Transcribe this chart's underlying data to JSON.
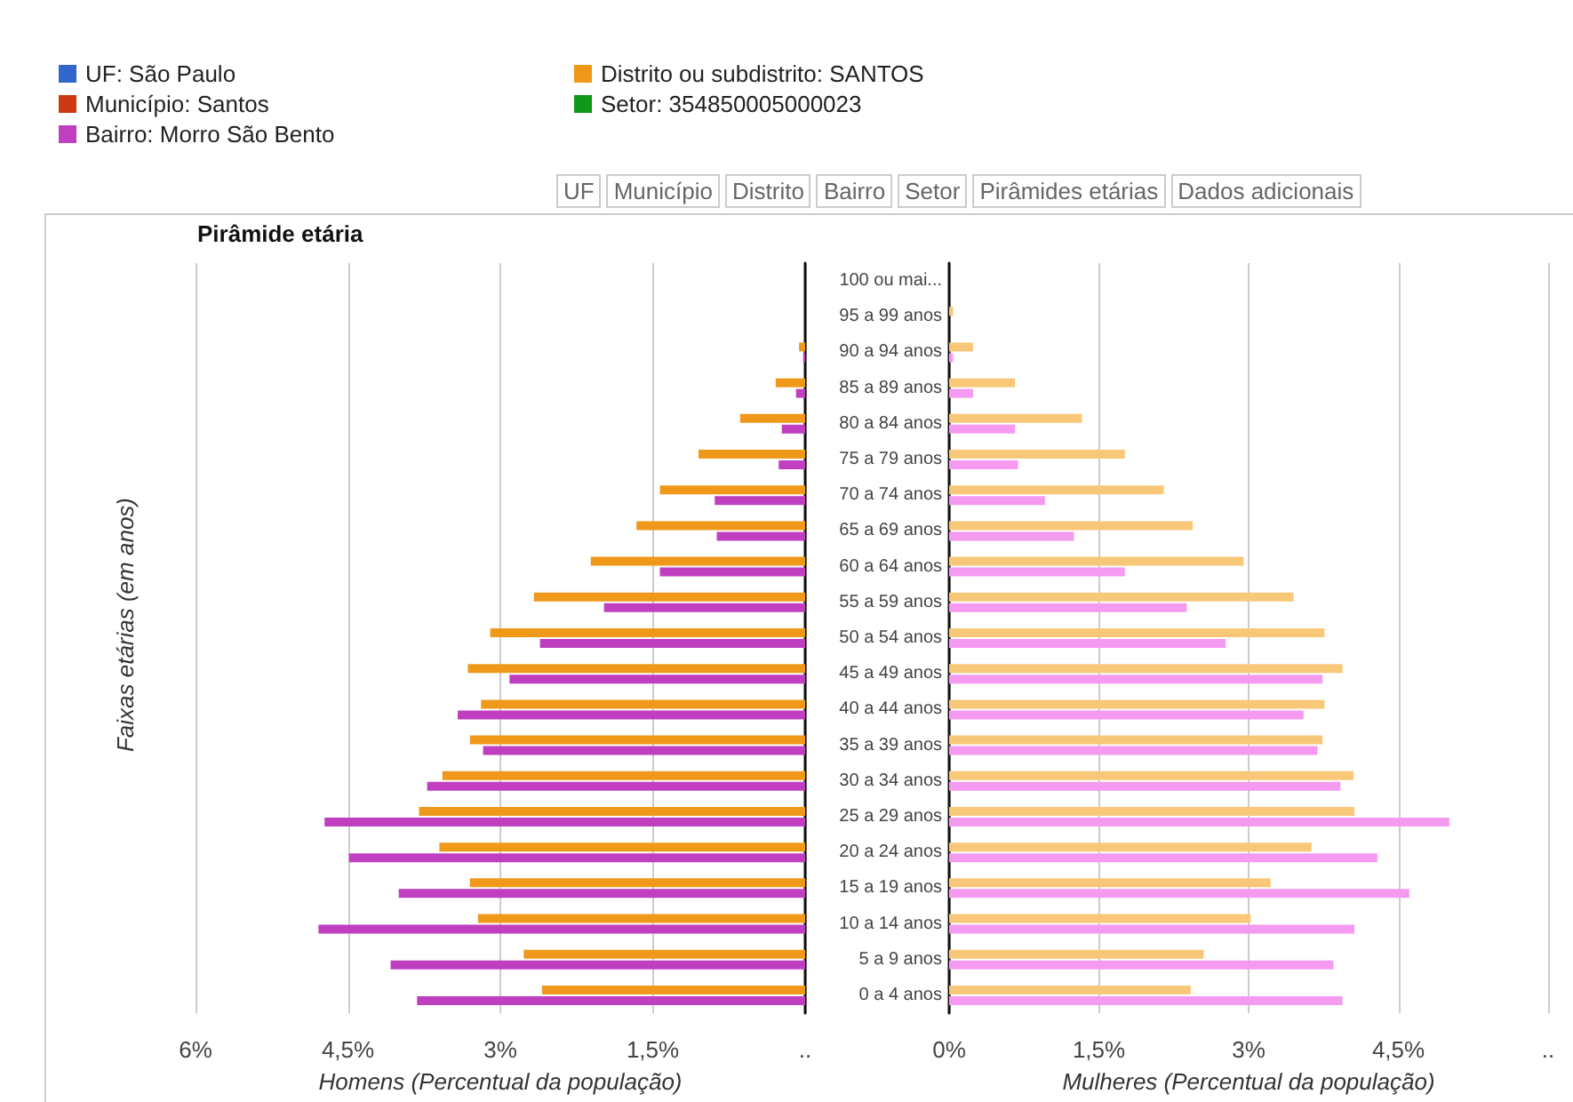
{
  "chart_data": [
    {
      "type": "bar",
      "orientation": "horizontal",
      "title": "Pirâmide etária",
      "xlabel": "Homens (Percentual da população)",
      "ylabel": "Faixas etárias (em anos)",
      "annotations": [
        "UF",
        "Município",
        "Distrito",
        "Bairro",
        "Setor",
        "Pirâmides etárias",
        "Dados adicionais"
      ],
      "categories": [
        null,
        null,
        null,
        null,
        null,
        null,
        null,
        null,
        null,
        null,
        null,
        null,
        null,
        null,
        null,
        null,
        null,
        null,
        null,
        null,
        null
      ],
      "series": [
        {
          "name": "UF: São Paulo",
          "color": "#3366cc",
          "values": [
            null,
            null,
            null,
            null,
            null,
            null,
            null,
            null,
            null,
            null,
            null,
            null,
            null,
            null,
            null,
            null,
            null,
            null,
            null,
            null,
            null
          ]
        },
        {
          "name": "Município: Santos",
          "color": "#cc3a12",
          "values": [
            null,
            null,
            null,
            null,
            null,
            null,
            null,
            null,
            null,
            null,
            null,
            null,
            null,
            null,
            null,
            null,
            null,
            null,
            null,
            null,
            null
          ]
        },
        {
          "name": "Bairro: Morro São Bento",
          "color": "#c03fc0",
          "values": [
            0,
            0,
            0.02,
            0.09,
            0.23,
            0.26,
            0.89,
            0.87,
            1.43,
            1.98,
            2.61,
            2.91,
            3.42,
            3.17,
            3.72,
            4.73,
            4.49,
            4.0,
            4.79,
            4.08,
            3.82
          ]
        },
        {
          "name": "Distrito ou subdistrito: SANTOS",
          "color": "#f0981a",
          "values": [
            0,
            0,
            0.06,
            0.29,
            0.64,
            1.05,
            1.43,
            1.66,
            2.11,
            2.67,
            3.1,
            3.32,
            3.19,
            3.3,
            3.57,
            3.8,
            3.6,
            3.3,
            3.22,
            2.77,
            2.59
          ]
        },
        {
          "name": "Setor: 354850005000023",
          "color": "#109618",
          "values": [
            null,
            null,
            null,
            null,
            null,
            null,
            null,
            null,
            null,
            null,
            null,
            null,
            null,
            null,
            null,
            null,
            null,
            null,
            null,
            null,
            null
          ]
        }
      ],
      "xlim": [
        6,
        0
      ],
      "xticks": [
        {
          "value": 6,
          "label": "6%"
        },
        {
          "value": 4.5,
          "label": "4,5%"
        },
        {
          "value": 3,
          "label": "3%"
        },
        {
          "value": 1.5,
          "label": "1,5%"
        },
        {
          "value": 0,
          "label": ".."
        }
      ],
      "grid": "x",
      "legend": "top left",
      "tick_labels": "x"
    },
    {
      "type": "bar",
      "orientation": "horizontal",
      "xlabel": "Mulheres (Percentual da população)",
      "categories": [
        "100 ou mai...",
        "95 a 99 anos",
        "90 a 94 anos",
        "85 a 89 anos",
        "80 a 84 anos",
        "75 a 79 anos",
        "70 a 74 anos",
        "65 a 69 anos",
        "60 a 64 anos",
        "55 a 59 anos",
        "50 a 54 anos",
        "45 a 49 anos",
        "40 a 44 anos",
        "35 a 39 anos",
        "30 a 34 anos",
        "25 a 29 anos",
        "20 a 24 anos",
        "15 a 19 anos",
        "10 a 14 anos",
        "5 a 9 anos",
        "0 a 4 anos"
      ],
      "series": [
        {
          "color": "#f49af0",
          "values": [
            0,
            0,
            0.04,
            0.24,
            0.66,
            0.69,
            0.96,
            1.25,
            1.76,
            2.38,
            2.77,
            3.74,
            3.55,
            3.69,
            3.92,
            5.01,
            4.29,
            4.61,
            4.06,
            3.85,
            3.94
          ]
        },
        {
          "color": "#f8c878",
          "values": [
            0,
            0.04,
            0.24,
            0.66,
            1.33,
            1.76,
            2.15,
            2.44,
            2.95,
            3.45,
            3.76,
            3.94,
            3.76,
            3.74,
            4.05,
            4.06,
            3.63,
            3.22,
            3.02,
            2.55,
            2.42
          ]
        }
      ],
      "xlim": [
        0,
        6
      ],
      "xticks": [
        {
          "value": 0,
          "label": "0%"
        },
        {
          "value": 1.5,
          "label": "1,5%"
        },
        {
          "value": 3,
          "label": "3%"
        },
        {
          "value": 4.5,
          "label": "4,5%"
        },
        {
          "value": 6,
          "label": ".."
        }
      ],
      "grid": "x"
    }
  ]
}
